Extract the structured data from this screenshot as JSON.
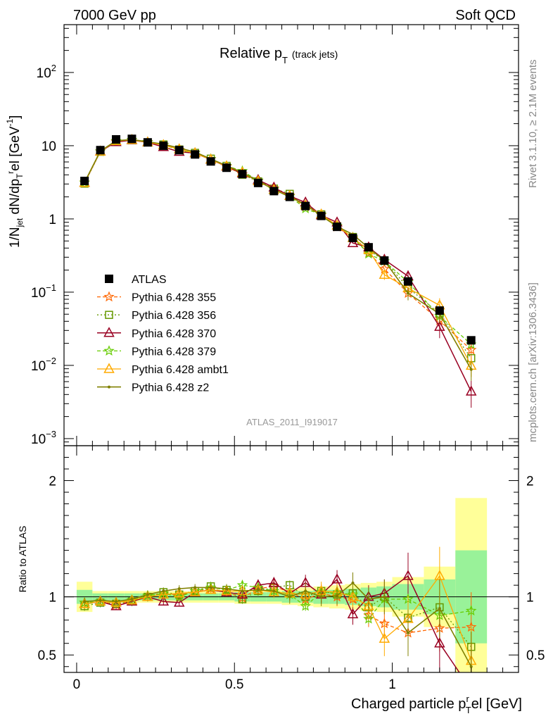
{
  "header": {
    "left": "7000 GeV pp",
    "right": "Soft QCD"
  },
  "side_labels": {
    "top": "Rivet 3.1.10, ≥ 2.1M events",
    "bottom": "mcplots.cern.ch [arXiv:1306.3436]"
  },
  "chart_data": {
    "type": "line",
    "title": "Relative p_T (track jets)",
    "title_main": "Relative p",
    "title_sub": "T",
    "title_paren": "(track jets)",
    "watermark": "ATLAS_2011_I919017",
    "xlabel": "Charged particle p_T^rel [GeV]",
    "xlabel_main": "Charged particle p",
    "xlabel_sup": "r",
    "xlabel_sub": "T",
    "xlabel_tail": "el [GeV]",
    "ylabel": "1/N_jet dN/dp_T^rel [GeV^-1]",
    "ylabel_p1": "1/N",
    "ylabel_p1sub": "jet",
    "ylabel_p2": " dN/dp",
    "ylabel_p2sub": "T",
    "ylabel_p2sup": "r",
    "ylabel_p3": "el [GeV",
    "ylabel_p3sup": "-1",
    "ylabel_p4": "]",
    "ratio_ylabel": "Ratio to ATLAS",
    "xlim": [
      -0.04,
      1.4
    ],
    "ylim": [
      0.0008,
      450
    ],
    "yscale": "log",
    "ratio_ylim": [
      0.35,
      2.3
    ],
    "main_y_ticks": [
      {
        "v": 0.001,
        "base": "10",
        "exp": "−3"
      },
      {
        "v": 0.01,
        "base": "10",
        "exp": "−2"
      },
      {
        "v": 0.1,
        "base": "10",
        "exp": "−1"
      },
      {
        "v": 1,
        "base": "1",
        "exp": ""
      },
      {
        "v": 10,
        "base": "10",
        "exp": ""
      },
      {
        "v": 100,
        "base": "10",
        "exp": "2"
      }
    ],
    "x_ticks": [
      {
        "v": 0,
        "label": "0"
      },
      {
        "v": 0.5,
        "label": "0.5"
      },
      {
        "v": 1,
        "label": "1"
      }
    ],
    "ratio_y_ticks": [
      {
        "v": 0.5,
        "label": "0.5"
      },
      {
        "v": 1,
        "label": "1"
      },
      {
        "v": 2,
        "label": "2"
      }
    ],
    "bins": [
      [
        0,
        0.05
      ],
      [
        0.05,
        0.1
      ],
      [
        0.1,
        0.15
      ],
      [
        0.15,
        0.2
      ],
      [
        0.2,
        0.25
      ],
      [
        0.25,
        0.3
      ],
      [
        0.3,
        0.35
      ],
      [
        0.35,
        0.4
      ],
      [
        0.4,
        0.45
      ],
      [
        0.45,
        0.5
      ],
      [
        0.5,
        0.55
      ],
      [
        0.55,
        0.6
      ],
      [
        0.6,
        0.65
      ],
      [
        0.65,
        0.7
      ],
      [
        0.7,
        0.75
      ],
      [
        0.75,
        0.8
      ],
      [
        0.8,
        0.85
      ],
      [
        0.85,
        0.9
      ],
      [
        0.9,
        0.95
      ],
      [
        0.95,
        1.0
      ],
      [
        1.0,
        1.1
      ],
      [
        1.1,
        1.2
      ],
      [
        1.2,
        1.3
      ]
    ],
    "x": [
      0.025,
      0.075,
      0.125,
      0.175,
      0.225,
      0.275,
      0.325,
      0.375,
      0.425,
      0.475,
      0.525,
      0.575,
      0.625,
      0.675,
      0.725,
      0.775,
      0.825,
      0.875,
      0.925,
      0.975,
      1.05,
      1.15,
      1.25
    ],
    "data": {
      "name": "ATLAS",
      "y": [
        3.3,
        8.7,
        12.2,
        12.4,
        11.1,
        10.0,
        8.7,
        7.6,
        6.1,
        5.0,
        4.1,
        3.1,
        2.4,
        2.0,
        1.5,
        1.1,
        0.78,
        0.55,
        0.41,
        0.27,
        0.14,
        0.056,
        0.022
      ]
    },
    "band_inner": [
      0.06,
      0.03,
      0.03,
      0.03,
      0.03,
      0.03,
      0.03,
      0.03,
      0.03,
      0.03,
      0.04,
      0.04,
      0.04,
      0.05,
      0.05,
      0.06,
      0.06,
      0.07,
      0.08,
      0.09,
      0.11,
      0.15,
      0.4
    ],
    "band_outer": [
      0.13,
      0.05,
      0.05,
      0.05,
      0.05,
      0.05,
      0.05,
      0.05,
      0.05,
      0.05,
      0.06,
      0.06,
      0.06,
      0.07,
      0.08,
      0.09,
      0.1,
      0.11,
      0.12,
      0.13,
      0.17,
      0.26,
      0.85
    ],
    "series": [
      {
        "name": "Pythia 6.428 355",
        "color": "#ff6600",
        "dash": "5,3",
        "marker": "star",
        "width": 1.3,
        "ratio": [
          0.95,
          0.96,
          0.93,
          0.97,
          1.01,
          1.03,
          1.01,
          1.05,
          1.07,
          1.04,
          0.99,
          1.07,
          1.09,
          1.04,
          0.98,
          1.03,
          1.0,
          0.98,
          0.84,
          0.77,
          0.69,
          0.73,
          0.74
        ],
        "err": [
          0.04,
          0.03,
          0.03,
          0.03,
          0.03,
          0.03,
          0.03,
          0.03,
          0.03,
          0.04,
          0.04,
          0.05,
          0.05,
          0.06,
          0.07,
          0.08,
          0.08,
          0.09,
          0.1,
          0.12,
          0.15,
          0.2,
          0.3
        ]
      },
      {
        "name": "Pythia 6.428 356",
        "color": "#669900",
        "dash": "2,3",
        "marker": "square",
        "width": 1.3,
        "ratio": [
          0.92,
          0.95,
          0.94,
          0.96,
          1.0,
          1.04,
          1.02,
          1.05,
          1.09,
          1.06,
          0.98,
          1.05,
          1.08,
          1.1,
          1.0,
          1.05,
          1.02,
          1.03,
          0.91,
          1.0,
          0.82,
          0.91,
          0.57
        ]
      },
      {
        "name": "Pythia 6.428 370",
        "color": "#990022",
        "dash": "",
        "marker": "triangle",
        "width": 1.5,
        "ratio": [
          0.94,
          0.96,
          0.92,
          0.96,
          1.0,
          0.96,
          0.95,
          1.04,
          1.06,
          1.04,
          1.02,
          1.1,
          1.12,
          1.03,
          1.12,
          1.02,
          1.15,
          0.85,
          1.0,
          1.03,
          1.18,
          0.6,
          0.2
        ],
        "err": [
          0.04,
          0.03,
          0.03,
          0.03,
          0.03,
          0.03,
          0.03,
          0.03,
          0.03,
          0.04,
          0.04,
          0.05,
          0.05,
          0.06,
          0.07,
          0.08,
          0.08,
          0.09,
          0.1,
          0.12,
          0.2,
          0.3,
          0.4
        ]
      },
      {
        "name": "Pythia 6.428 379",
        "color": "#66cc00",
        "dash": "5,3",
        "marker": "star",
        "width": 1.3,
        "ratio": [
          0.95,
          0.96,
          0.95,
          0.97,
          1.01,
          1.03,
          1.0,
          1.05,
          1.08,
          1.06,
          1.1,
          1.08,
          1.05,
          1.02,
          0.92,
          1.04,
          1.03,
          1.02,
          0.81,
          0.98,
          0.98,
          0.84,
          0.88
        ]
      },
      {
        "name": "Pythia 6.428 ambt1",
        "color": "#ffaa00",
        "dash": "",
        "marker": "triangle",
        "width": 1.3,
        "ratio": [
          0.94,
          0.96,
          0.95,
          0.97,
          1.0,
          1.02,
          1.03,
          1.04,
          1.06,
          1.05,
          1.05,
          1.06,
          1.04,
          1.03,
          1.02,
          1.05,
          1.04,
          1.0,
          0.92,
          0.64,
          0.81,
          1.18,
          0.45
        ],
        "err": [
          0.04,
          0.03,
          0.03,
          0.03,
          0.03,
          0.03,
          0.03,
          0.03,
          0.03,
          0.04,
          0.04,
          0.05,
          0.05,
          0.06,
          0.07,
          0.08,
          0.08,
          0.09,
          0.12,
          0.15,
          0.2,
          0.25,
          0.3
        ]
      },
      {
        "name": "Pythia 6.428 z2",
        "color": "#808000",
        "dash": "",
        "marker": "dot",
        "width": 1.6,
        "ratio": [
          0.96,
          0.97,
          0.96,
          0.98,
          1.02,
          1.05,
          1.07,
          1.08,
          1.08,
          1.07,
          1.05,
          1.06,
          1.05,
          1.0,
          1.05,
          1.0,
          1.01,
          1.12,
          0.98,
          1.0,
          0.69,
          0.9,
          0.4
        ],
        "err": [
          0.03,
          0.03,
          0.03,
          0.03,
          0.03,
          0.03,
          0.03,
          0.03,
          0.03,
          0.04,
          0.04,
          0.05,
          0.05,
          0.06,
          0.07,
          0.08,
          0.08,
          0.09,
          0.1,
          0.15,
          0.2,
          0.25,
          0.3
        ]
      }
    ],
    "legend_placement": "center-left"
  }
}
